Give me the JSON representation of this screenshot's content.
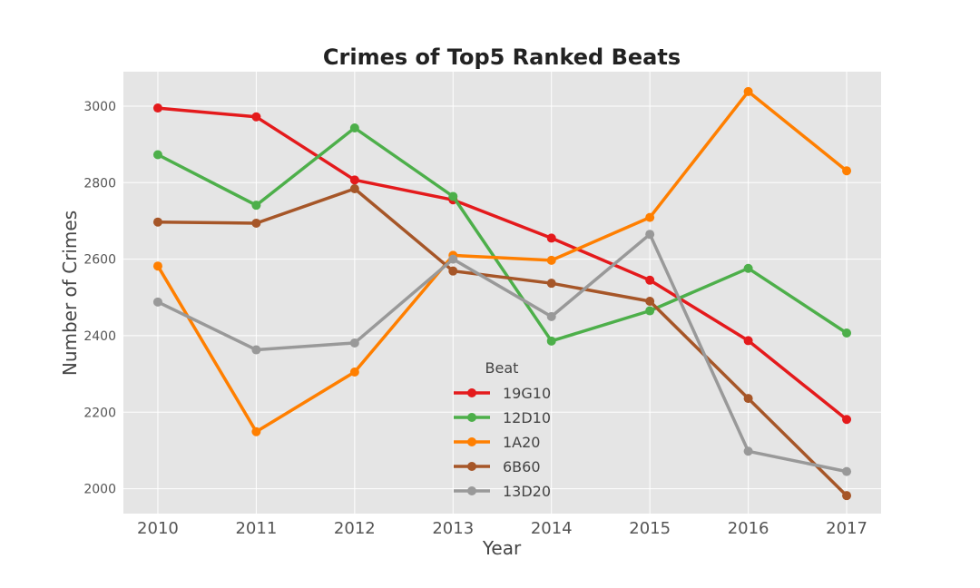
{
  "chart_data": {
    "type": "line",
    "title": "Crimes of Top5 Ranked Beats",
    "xlabel": "Year",
    "ylabel": "Number of Crimes",
    "x": [
      2010,
      2011,
      2012,
      2013,
      2014,
      2015,
      2016,
      2017
    ],
    "xlim": [
      2009.65,
      2017.35
    ],
    "ylim": [
      1935,
      3090
    ],
    "yticks": [
      2000,
      2200,
      2400,
      2600,
      2800,
      3000
    ],
    "grid": true,
    "legend_title": "Beat",
    "legend_position": "lower-center",
    "series": [
      {
        "name": "19G10",
        "color": "#e41a1c",
        "values": [
          2995,
          2972,
          2807,
          2755,
          2655,
          2545,
          2387,
          2181
        ]
      },
      {
        "name": "12D10",
        "color": "#4daf4a",
        "values": [
          2873,
          2741,
          2943,
          2764,
          2386,
          2465,
          2576,
          2407
        ]
      },
      {
        "name": "1A20",
        "color": "#ff7f00",
        "values": [
          2582,
          2149,
          2305,
          2610,
          2597,
          2709,
          3038,
          2831
        ]
      },
      {
        "name": "6B60",
        "color": "#a65628",
        "values": [
          2697,
          2694,
          2784,
          2569,
          2537,
          2490,
          2236,
          1982
        ]
      },
      {
        "name": "13D20",
        "color": "#999999",
        "values": [
          2488,
          2363,
          2381,
          2600,
          2450,
          2665,
          2098,
          2045
        ]
      }
    ]
  }
}
